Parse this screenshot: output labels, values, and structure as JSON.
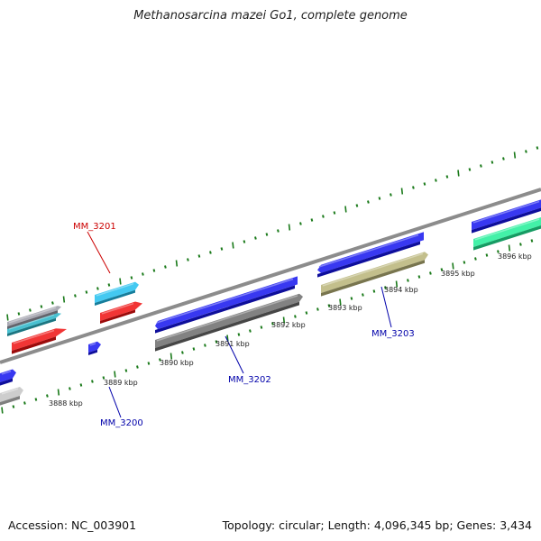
{
  "title": "Methanosarcina mazei Go1, complete genome",
  "footer": {
    "accession": "Accession: NC_003901",
    "summary": "Topology: circular; Length: 4,096,345 bp; Genes: 3,434"
  },
  "colors": {
    "backbone": "#8c8c8c",
    "tick": "#1a7a1a",
    "label_red": "#cc0000",
    "label_blue": "#0000aa"
  },
  "scale": {
    "labels": [
      "3888 kbp",
      "3889 kbp",
      "3890 kbp",
      "3891 kbp",
      "3892 kbp",
      "3893 kbp",
      "3894 kbp",
      "3895 kbp",
      "3896 kbp"
    ]
  },
  "genes": [
    {
      "name": "gene-cyan-far-left",
      "color": "#29b5c8"
    },
    {
      "name": "gene-gray-far-left",
      "color": "#9a9aa6"
    },
    {
      "name": "gene-red-left",
      "color": "#ee1111"
    },
    {
      "name": "gene-blue-edge",
      "color": "#1515ee"
    },
    {
      "name": "gene-silver-edge",
      "color": "#c4c4c4"
    },
    {
      "name": "gene-cyan-mm3201",
      "color": "#22c0ee"
    },
    {
      "name": "gene-red-mm3201",
      "color": "#ee1111"
    },
    {
      "name": "gene-blue-mm3200",
      "color": "#1515ee"
    },
    {
      "name": "gene-blue-mm3202",
      "color": "#1515ee"
    },
    {
      "name": "gene-darkgray-mm3202",
      "color": "#6c6c6c"
    },
    {
      "name": "gene-blue-3893",
      "color": "#1515ee"
    },
    {
      "name": "gene-olive-mm3203",
      "color": "#b8b478"
    },
    {
      "name": "gene-blue-right",
      "color": "#1515ee"
    },
    {
      "name": "gene-green-right",
      "color": "#22ee99"
    }
  ],
  "gene_labels": [
    {
      "text": "MM_3201",
      "color": "#cc0000"
    },
    {
      "text": "MM_3200",
      "color": "#0000aa"
    },
    {
      "text": "MM_3202",
      "color": "#0000aa"
    },
    {
      "text": "MM_3203",
      "color": "#0000aa"
    }
  ]
}
